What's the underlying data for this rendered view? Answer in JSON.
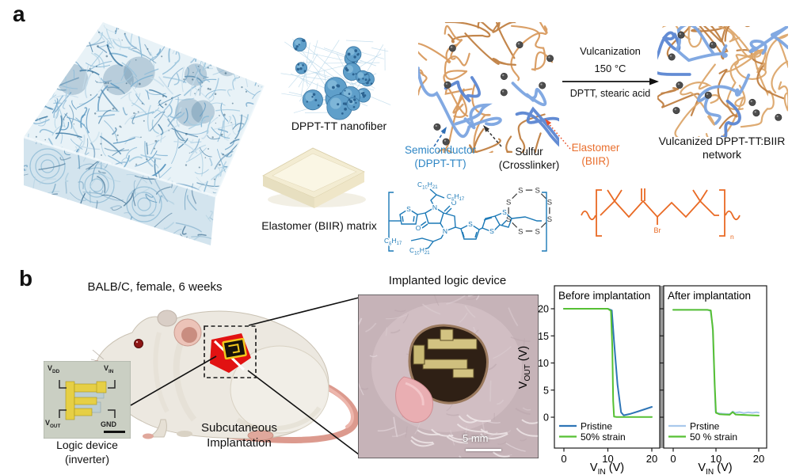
{
  "panel_a": {
    "label": "a",
    "nanofiber_caption": "DPPT-TT nanofiber",
    "elastomer_caption": "Elastomer (BIIR) matrix",
    "component_labels": {
      "semiconductor_line1": "Semiconductor",
      "semiconductor_line2": "(DPPT-TT)",
      "sulfur_line1": "Sulfur",
      "sulfur_line2": "(Crosslinker)",
      "elastomer_line1": "Elastomer",
      "elastomer_line2": "(BIIR)"
    },
    "reaction": {
      "step": "Vulcanization",
      "temperature": "150 °C",
      "reagents": "DPTT, stearic acid"
    },
    "product_line1": "Vulcanized DPPT-TT:BIIR",
    "product_line2": "network",
    "chem": {
      "s": "S",
      "n": "N",
      "o": "O",
      "br": "Br",
      "repeat_n": "n",
      "alkyl_c10": "C_{10}H_{21}",
      "alkyl_c8": "C_{8}H_{17}"
    }
  },
  "panel_b": {
    "label": "b",
    "subject": "BALB/C, female, 6 weeks",
    "procedure_line1": "Subcutaneous",
    "procedure_line2": "Implantation",
    "device_caption_line1": "Logic device",
    "device_caption_line2": "(inverter)",
    "device_pins": {
      "vdd": "V_{DD}",
      "vin": "V_{IN}",
      "vout": "V_{OUT}",
      "gnd": "GND"
    },
    "photo_title": "Implanted logic device",
    "scale_bar": "5 mm"
  },
  "colors": {
    "semiconductor_blue": "#2e86c5",
    "structure_blue": "#1a78b6",
    "elastomer_orange": "#e96f2e",
    "network_tan": "#d89a5e",
    "network_blue": "#5b86d2",
    "sulfur_gray": "#4d4d4d",
    "pristine_blue": "#2e75b6",
    "pristine_light_blue": "#a9c9ec",
    "strain_green": "#56c033",
    "implant_red": "#e11212"
  },
  "chart_data": [
    {
      "type": "line",
      "title": "Before implantation",
      "xlabel": "V_{IN} (V)",
      "ylabel": "V_{OUT} (V)",
      "xlim": [
        0,
        20
      ],
      "ylim": [
        0,
        20
      ],
      "xticks": [
        0,
        10,
        20
      ],
      "yticks": [
        0,
        5,
        10,
        15,
        20
      ],
      "grid": false,
      "legend_position": "lower left",
      "series": [
        {
          "name": "Pristine",
          "color": "#2e75b6",
          "x": [
            0,
            2,
            4,
            6,
            8,
            10,
            10.9,
            11.4,
            12.2,
            13,
            13.6,
            15,
            17,
            20
          ],
          "y": [
            20,
            20,
            20,
            20,
            20,
            20,
            19.7,
            14,
            6,
            0.9,
            0.35,
            0.6,
            1.1,
            1.9
          ]
        },
        {
          "name": "50% strain",
          "color": "#56c033",
          "x": [
            0,
            2,
            4,
            6,
            8,
            10,
            10.7,
            11,
            11.2,
            11.4,
            12,
            14,
            16,
            18,
            20
          ],
          "y": [
            20,
            20,
            20,
            20,
            20,
            20,
            19.6,
            13,
            3,
            0.1,
            0.05,
            0.05,
            0.05,
            0.05,
            0.05
          ]
        }
      ]
    },
    {
      "type": "line",
      "title": "After implantation",
      "xlabel": "V_{IN} (V)",
      "ylabel": "V_{OUT} (V)",
      "xlim": [
        0,
        20
      ],
      "ylim": [
        0,
        20
      ],
      "xticks": [
        0,
        10,
        20
      ],
      "yticks": [
        0,
        5,
        10,
        15,
        20
      ],
      "grid": false,
      "legend_position": "lower left",
      "series": [
        {
          "name": "Prstine",
          "color": "#a9c9ec",
          "x": [
            0,
            2,
            4,
            6,
            8,
            8.7,
            9.2,
            9.6,
            9.9,
            10.5,
            11.5,
            12.5,
            13.3,
            13.9,
            14.5,
            15.5,
            16.5,
            17.5,
            18.5,
            19.5,
            20
          ],
          "y": [
            19.8,
            19.8,
            19.8,
            19.8,
            19.8,
            19.6,
            17,
            8,
            1,
            0.75,
            0.65,
            0.6,
            0.6,
            1.05,
            0.8,
            0.95,
            0.75,
            0.9,
            0.8,
            0.9,
            0.85
          ]
        },
        {
          "name": "50 % strain",
          "color": "#56c033",
          "x": [
            0,
            2,
            4,
            6,
            8,
            8.8,
            9.3,
            9.7,
            10,
            10.8,
            12,
            13.2,
            13.9,
            14.6,
            15.5,
            17,
            18.5,
            20
          ],
          "y": [
            19.8,
            19.8,
            19.8,
            19.8,
            19.8,
            19.7,
            16,
            6,
            0.8,
            0.55,
            0.5,
            0.45,
            0.95,
            0.5,
            0.45,
            0.4,
            0.35,
            0.3
          ]
        }
      ]
    }
  ]
}
